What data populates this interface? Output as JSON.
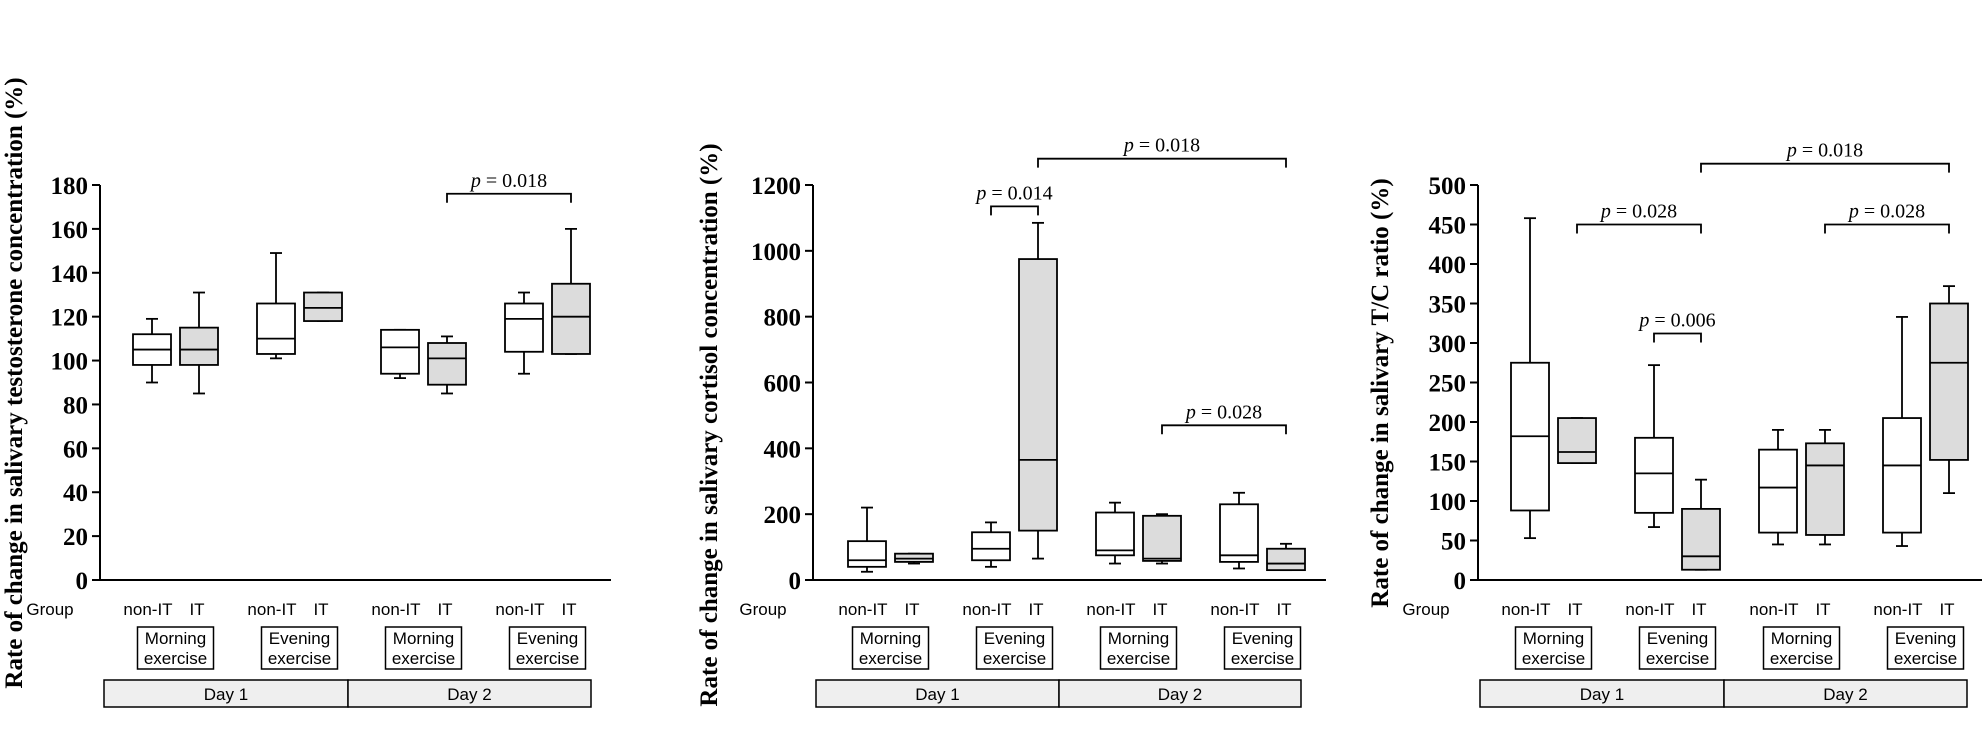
{
  "chart_data": [
    {
      "type": "box",
      "ylabel": "Rate of change in salivary testosterone concentration (%)",
      "ylim": [
        0,
        180
      ],
      "yticks": [
        0,
        20,
        40,
        60,
        80,
        100,
        120,
        140,
        160,
        180
      ],
      "group_label": "Group",
      "groups": [
        {
          "label": "non-IT",
          "session": "Morning exercise",
          "day": "Day 1",
          "fill": "white",
          "whisker_low": 90,
          "q1": 98,
          "median": 105,
          "q3": 112,
          "whisker_high": 119
        },
        {
          "label": "IT",
          "session": "Morning exercise",
          "day": "Day 1",
          "fill": "gray",
          "whisker_low": 85,
          "q1": 98,
          "median": 105,
          "q3": 115,
          "whisker_high": 131
        },
        {
          "label": "non-IT",
          "session": "Evening exercise",
          "day": "Day 1",
          "fill": "white",
          "whisker_low": 101,
          "q1": 103,
          "median": 110,
          "q3": 126,
          "whisker_high": 149
        },
        {
          "label": "IT",
          "session": "Evening exercise",
          "day": "Day 1",
          "fill": "gray",
          "whisker_low": 118,
          "q1": 118,
          "median": 124,
          "q3": 131,
          "whisker_high": 131
        },
        {
          "label": "non-IT",
          "session": "Morning exercise",
          "day": "Day 2",
          "fill": "white",
          "whisker_low": 92,
          "q1": 94,
          "median": 106,
          "q3": 114,
          "whisker_high": 114
        },
        {
          "label": "IT",
          "session": "Morning exercise",
          "day": "Day 2",
          "fill": "gray",
          "whisker_low": 85,
          "q1": 89,
          "median": 101,
          "q3": 108,
          "whisker_high": 111
        },
        {
          "label": "non-IT",
          "session": "Evening exercise",
          "day": "Day 2",
          "fill": "white",
          "whisker_low": 94,
          "q1": 104,
          "median": 119,
          "q3": 126,
          "whisker_high": 131
        },
        {
          "label": "IT",
          "session": "Evening exercise",
          "day": "Day 2",
          "fill": "gray",
          "whisker_low": 103,
          "q1": 103,
          "median": 120,
          "q3": 135,
          "whisker_high": 160
        }
      ],
      "annotations": [
        {
          "from": 5,
          "to": 7,
          "y": 176,
          "p_label": "p",
          "p_text": " = 0.018"
        }
      ]
    },
    {
      "type": "box",
      "ylabel": "Rate of change in salivary cortisol concentration (%)",
      "ylim": [
        0,
        1200
      ],
      "yticks": [
        0,
        200,
        400,
        600,
        800,
        1000,
        1200
      ],
      "group_label": "Group",
      "groups": [
        {
          "label": "non-IT",
          "session": "Morning exercise",
          "day": "Day 1",
          "fill": "white",
          "whisker_low": 25,
          "q1": 40,
          "median": 60,
          "q3": 118,
          "whisker_high": 220
        },
        {
          "label": "IT",
          "session": "Morning exercise",
          "day": "Day 1",
          "fill": "gray",
          "whisker_low": 50,
          "q1": 55,
          "median": 65,
          "q3": 80,
          "whisker_high": 80
        },
        {
          "label": "non-IT",
          "session": "Evening exercise",
          "day": "Day 1",
          "fill": "white",
          "whisker_low": 40,
          "q1": 60,
          "median": 95,
          "q3": 145,
          "whisker_high": 175
        },
        {
          "label": "IT",
          "session": "Evening exercise",
          "day": "Day 1",
          "fill": "gray",
          "whisker_low": 65,
          "q1": 150,
          "median": 365,
          "q3": 975,
          "whisker_high": 1085
        },
        {
          "label": "non-IT",
          "session": "Morning exercise",
          "day": "Day 2",
          "fill": "white",
          "whisker_low": 50,
          "q1": 75,
          "median": 90,
          "q3": 205,
          "whisker_high": 235
        },
        {
          "label": "IT",
          "session": "Morning exercise",
          "day": "Day 2",
          "fill": "gray",
          "whisker_low": 50,
          "q1": 58,
          "median": 65,
          "q3": 195,
          "whisker_high": 200
        },
        {
          "label": "non-IT",
          "session": "Evening exercise",
          "day": "Day 2",
          "fill": "white",
          "whisker_low": 35,
          "q1": 55,
          "median": 75,
          "q3": 230,
          "whisker_high": 265
        },
        {
          "label": "IT",
          "session": "Evening exercise",
          "day": "Day 2",
          "fill": "gray",
          "whisker_low": 30,
          "q1": 30,
          "median": 50,
          "q3": 95,
          "whisker_high": 110
        }
      ],
      "annotations": [
        {
          "from": 2,
          "to": 3,
          "y": 1135,
          "p_label": "p",
          "p_text": " = 0.014"
        },
        {
          "from": 3,
          "to": 7,
          "y": 1280,
          "p_label": "p",
          "p_text": " = 0.018"
        },
        {
          "from": 5,
          "to": 7,
          "y": 470,
          "p_label": "p",
          "p_text": " = 0.028"
        }
      ]
    },
    {
      "type": "box",
      "ylabel": "Rate of change in salivary T/C ratio (%)",
      "ylim": [
        0,
        500
      ],
      "yticks": [
        0,
        50,
        100,
        150,
        200,
        250,
        300,
        350,
        400,
        450,
        500
      ],
      "group_label": "Group",
      "groups": [
        {
          "label": "non-IT",
          "session": "Morning exercise",
          "day": "Day 1",
          "fill": "white",
          "whisker_low": 53,
          "q1": 88,
          "median": 182,
          "q3": 275,
          "whisker_high": 458
        },
        {
          "label": "IT",
          "session": "Morning exercise",
          "day": "Day 1",
          "fill": "gray",
          "whisker_low": 148,
          "q1": 148,
          "median": 162,
          "q3": 205,
          "whisker_high": 205
        },
        {
          "label": "non-IT",
          "session": "Evening exercise",
          "day": "Day 1",
          "fill": "white",
          "whisker_low": 67,
          "q1": 85,
          "median": 135,
          "q3": 180,
          "whisker_high": 272
        },
        {
          "label": "IT",
          "session": "Evening exercise",
          "day": "Day 1",
          "fill": "gray",
          "whisker_low": 13,
          "q1": 13,
          "median": 30,
          "q3": 90,
          "whisker_high": 127
        },
        {
          "label": "non-IT",
          "session": "Morning exercise",
          "day": "Day 2",
          "fill": "white",
          "whisker_low": 45,
          "q1": 60,
          "median": 117,
          "q3": 165,
          "whisker_high": 190
        },
        {
          "label": "IT",
          "session": "Morning exercise",
          "day": "Day 2",
          "fill": "gray",
          "whisker_low": 45,
          "q1": 57,
          "median": 145,
          "q3": 173,
          "whisker_high": 190
        },
        {
          "label": "non-IT",
          "session": "Evening exercise",
          "day": "Day 2",
          "fill": "white",
          "whisker_low": 43,
          "q1": 60,
          "median": 145,
          "q3": 205,
          "whisker_high": 333
        },
        {
          "label": "IT",
          "session": "Evening exercise",
          "day": "Day 2",
          "fill": "gray",
          "whisker_low": 110,
          "q1": 152,
          "median": 275,
          "q3": 350,
          "whisker_high": 372
        }
      ],
      "annotations": [
        {
          "from": 1,
          "to": 3,
          "y": 450,
          "p_label": "p",
          "p_text": " = 0.028"
        },
        {
          "from": 2,
          "to": 3,
          "y": 312,
          "p_label": "p",
          "p_text": " = 0.006"
        },
        {
          "from": 3,
          "to": 7,
          "y": 527,
          "p_label": "p",
          "p_text": " = 0.018"
        },
        {
          "from": 5,
          "to": 7,
          "y": 450,
          "p_label": "p",
          "p_text": " = 0.028"
        }
      ]
    }
  ],
  "colors": {
    "box_gray": "#dcdcdc",
    "day_bar": "#efefef",
    "line": "#000000"
  }
}
